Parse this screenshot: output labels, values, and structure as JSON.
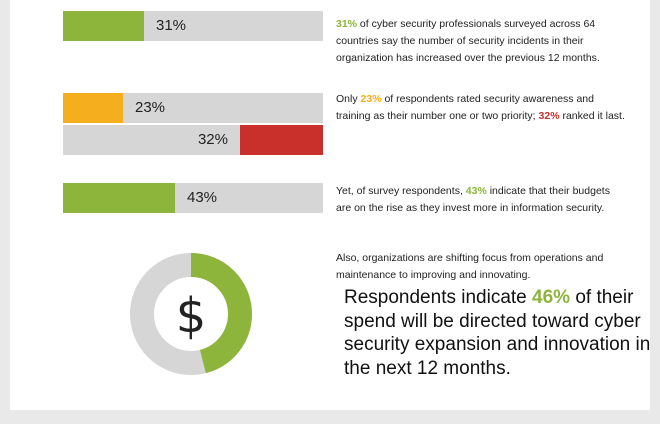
{
  "colors": {
    "green": "#8db53c",
    "orange": "#f5ae1d",
    "red": "#c9302c",
    "track": "#d6d6d6"
  },
  "chart_data": [
    {
      "type": "bar",
      "orientation": "horizontal",
      "values": [
        31,
        23,
        32,
        43
      ],
      "labels": [
        "31%",
        "23%",
        "32%",
        "43%"
      ],
      "colors": [
        "green",
        "orange",
        "red",
        "green"
      ],
      "fill_direction": [
        "left",
        "left",
        "right",
        "left"
      ],
      "ylim": [
        0,
        100
      ]
    },
    {
      "type": "pie",
      "style": "donut",
      "values": [
        46,
        54
      ],
      "colors": [
        "green",
        "track"
      ],
      "center_label": "$"
    }
  ],
  "blocks": [
    {
      "highlight": "31%",
      "highlight_color": "green",
      "text_after": " of cyber security professionals surveyed across 64 countries say the number of security incidents in their organization has increased over the previous 12 months."
    },
    {
      "text_before": "Only ",
      "highlight": "23%",
      "highlight_color": "orange",
      "text_middle": " of respondents rated security awareness and training as their number one or two priority; ",
      "highlight2": "32%",
      "highlight2_color": "red",
      "text_after": " ranked it last."
    },
    {
      "text_before": "Yet, of survey respondents, ",
      "highlight": "43%",
      "highlight_color": "green",
      "text_after": " indicate that their budgets are on the rise as they invest more in information security."
    },
    {
      "text": "Also, organizations are shifting focus from operations and maintenance to improving and innovating."
    }
  ],
  "statement": {
    "text_before": "Respondents indicate ",
    "highlight": "46%",
    "text_after": " of their spend will be directed toward cyber security expansion and innovation in the next 12 months."
  }
}
